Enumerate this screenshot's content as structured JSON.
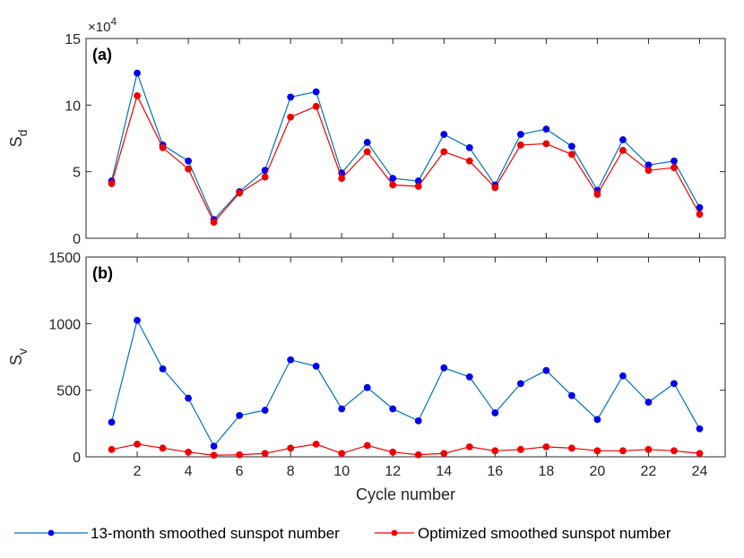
{
  "chart_data": [
    {
      "type": "line",
      "panel_label": "(a)",
      "title": "",
      "xlabel": "",
      "ylabel": "S",
      "ylabel_subscript": "d",
      "exponent": {
        "base": "×10",
        "power": "4"
      },
      "x": [
        1,
        2,
        3,
        4,
        5,
        6,
        7,
        8,
        9,
        10,
        11,
        12,
        13,
        14,
        15,
        16,
        17,
        18,
        19,
        20,
        21,
        22,
        23,
        24
      ],
      "xlim": [
        0,
        25
      ],
      "ylim": [
        0,
        15
      ],
      "xticks": [
        2,
        4,
        6,
        8,
        10,
        12,
        14,
        16,
        18,
        20,
        22,
        24
      ],
      "yticks": [
        0,
        5,
        10,
        15
      ],
      "series": [
        {
          "name": "13-month smoothed sunspot number",
          "color": "#0000ee",
          "line_color": "#0072bd",
          "values": [
            4.3,
            12.4,
            7.0,
            5.8,
            1.4,
            3.5,
            5.1,
            10.6,
            11.0,
            4.9,
            7.2,
            4.5,
            4.3,
            7.8,
            6.8,
            4.0,
            7.8,
            8.2,
            6.9,
            3.6,
            7.4,
            5.5,
            5.8,
            2.3
          ]
        },
        {
          "name": "Optimized smoothed sunspot number",
          "color": "#ee0000",
          "line_color": "#ee0000",
          "values": [
            4.1,
            10.7,
            6.8,
            5.2,
            1.2,
            3.4,
            4.6,
            9.1,
            9.9,
            4.5,
            6.5,
            4.0,
            3.9,
            6.5,
            5.8,
            3.8,
            7.0,
            7.1,
            6.3,
            3.3,
            6.6,
            5.1,
            5.3,
            1.8
          ]
        }
      ]
    },
    {
      "type": "line",
      "panel_label": "(b)",
      "title": "",
      "xlabel": "Cycle number",
      "ylabel": "S",
      "ylabel_subscript": "v",
      "x": [
        1,
        2,
        3,
        4,
        5,
        6,
        7,
        8,
        9,
        10,
        11,
        12,
        13,
        14,
        15,
        16,
        17,
        18,
        19,
        20,
        21,
        22,
        23,
        24
      ],
      "xlim": [
        0,
        25
      ],
      "ylim": [
        0,
        1500
      ],
      "xticks": [
        2,
        4,
        6,
        8,
        10,
        12,
        14,
        16,
        18,
        20,
        22,
        24
      ],
      "yticks": [
        0,
        500,
        1000,
        1500
      ],
      "series": [
        {
          "name": "13-month smoothed sunspot number",
          "color": "#0000ee",
          "line_color": "#0072bd",
          "values": [
            260,
            1025,
            660,
            440,
            80,
            310,
            350,
            728,
            680,
            360,
            520,
            360,
            270,
            668,
            600,
            330,
            550,
            648,
            460,
            280,
            608,
            410,
            550,
            210
          ]
        },
        {
          "name": "Optimized smoothed sunspot number",
          "color": "#ee0000",
          "line_color": "#ee0000",
          "values": [
            55,
            95,
            65,
            35,
            12,
            15,
            25,
            65,
            95,
            25,
            85,
            35,
            15,
            25,
            75,
            45,
            55,
            75,
            65,
            45,
            45,
            55,
            45,
            25
          ]
        }
      ]
    }
  ],
  "legend": {
    "placement": "bottom",
    "entries": [
      {
        "label": "13-month smoothed sunspot number",
        "color": "#0000ee",
        "line_color": "#0072bd"
      },
      {
        "label": "Optimized smoothed sunspot number",
        "color": "#ee0000",
        "line_color": "#ee0000"
      }
    ]
  }
}
